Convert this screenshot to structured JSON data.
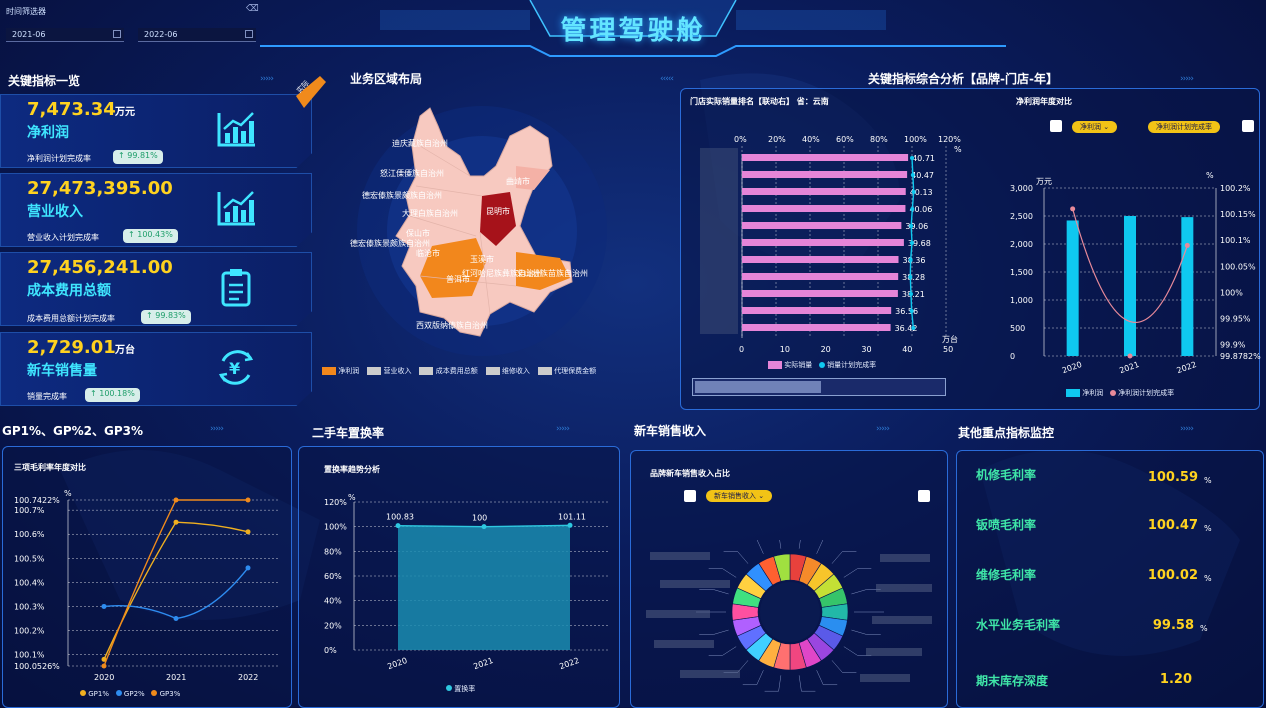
{
  "header": {
    "title": "管理驾驶舱"
  },
  "filter": {
    "label": "时间筛选器",
    "start": "2021-06",
    "end": "2022-06"
  },
  "kpi": {
    "section_title": "关键指标一览",
    "corner_badge": "实际",
    "items": [
      {
        "value": "7,473.34",
        "unit": "万元",
        "name": "净利润",
        "rate_label": "净利润计划完成率",
        "rate": "↑ 99.81%",
        "icon": "trend-chart-icon"
      },
      {
        "value": "27,473,395.00",
        "unit": "",
        "name": "营业收入",
        "rate_label": "营业收入计划完成率",
        "rate": "↑ 100.43%",
        "icon": "trend-chart-icon"
      },
      {
        "value": "27,456,241.00",
        "unit": "",
        "name": "成本费用总额",
        "rate_label": "成本费用总额计划完成率",
        "rate": "↑ 99.83%",
        "icon": "clipboard-icon"
      },
      {
        "value": "2,729.01",
        "unit": "万台",
        "name": "新车销售量",
        "rate_label": "销量完成率",
        "rate": "↑ 100.18%",
        "icon": "yen-cycle-icon"
      }
    ]
  },
  "map": {
    "title": "业务区域布局",
    "labels": [
      "迪庆藏族自治州",
      "怒江傈僳族自治州",
      "大理白族自治州",
      "德宏傣族景颇族自治州",
      "保山市",
      "临沧市",
      "昆明市",
      "曲靖市",
      "玉溪市",
      "普洱市",
      "红河哈尼族彝族自治州",
      "文山壮族苗族自治州",
      "西双版纳傣族自治州"
    ],
    "legend": [
      "净利润",
      "营业收入",
      "成本费用总额",
      "维修收入",
      "代理保费金额"
    ]
  },
  "analysis": {
    "title": "关键指标综合分析【品牌-门店-年】",
    "left_sub": "门店实际销量排名【联动右】 省：云南",
    "right_sub": "净利润年度对比"
  },
  "store_chart": {
    "type": "bar",
    "top_ticks": [
      "0%",
      "20%",
      "40%",
      "60%",
      "80%",
      "100%",
      "120%"
    ],
    "top_unit": "%",
    "bottom_ticks": [
      "0",
      "10",
      "20",
      "30",
      "40",
      "50"
    ],
    "bottom_unit": "万台",
    "values": [
      40.71,
      40.47,
      40.13,
      40.06,
      39.06,
      39.68,
      38.36,
      38.28,
      38.21,
      36.56,
      36.42
    ],
    "labels": [
      "40.71",
      "40.47",
      "40.13",
      "40.06",
      "39.06",
      "39.68",
      "38.36",
      "38.28",
      "38.21",
      "36.56",
      "36.42"
    ],
    "rate": [
      100,
      100.5,
      101,
      100.2,
      99.5,
      100,
      99.2,
      99,
      99.4,
      99.8,
      100.8
    ],
    "legend": [
      "实际销量",
      "销量计划完成率"
    ]
  },
  "profit_chart": {
    "type": "bar",
    "chip1": "净利润",
    "chip2": "净利润计划完成率",
    "left_unit": "万元",
    "right_unit": "%",
    "left_ticks": [
      "0",
      "500",
      "1,000",
      "1,500",
      "2,000",
      "2,500",
      "3,000"
    ],
    "right_ticks": [
      "99.8782%",
      "99.9%",
      "99.95%",
      "100%",
      "100.05%",
      "100.1%",
      "100.15%",
      "100.2%"
    ],
    "categories": [
      "2020",
      "2021",
      "2022"
    ],
    "values": [
      2420,
      2500,
      2480
    ],
    "rate": [
      100.16,
      99.8782,
      100.09
    ],
    "legend": [
      "净利润",
      "净利润计划完成率"
    ]
  },
  "gp_chart": {
    "type": "line",
    "section_title": "GP1%、GP%2、GP3%",
    "sub": "三项毛利率年度对比",
    "y_unit": "%",
    "y_ticks": [
      "100.0526%",
      "100.1%",
      "100.2%",
      "100.3%",
      "100.4%",
      "100.5%",
      "100.6%",
      "100.7%",
      "100.7422%"
    ],
    "categories": [
      "2020",
      "2021",
      "2022"
    ],
    "series": [
      {
        "name": "GP1%",
        "values": [
          100.08,
          100.65,
          100.61
        ],
        "color": "#f0b020"
      },
      {
        "name": "GP2%",
        "values": [
          100.3,
          100.25,
          100.46
        ],
        "color": "#2e8cf0"
      },
      {
        "name": "GP3%",
        "values": [
          100.0526,
          100.7422,
          100.7422
        ],
        "color": "#f08a1c"
      }
    ]
  },
  "replace_chart": {
    "type": "area",
    "section_title": "二手车置换率",
    "sub": "置换率趋势分析",
    "y_unit": "%",
    "y_ticks": [
      "0%",
      "20%",
      "40%",
      "60%",
      "80%",
      "100%",
      "120%"
    ],
    "categories": [
      "2020",
      "2021",
      "2022"
    ],
    "values": [
      100.83,
      100,
      101.11
    ],
    "labels": [
      "100.83",
      "100",
      "101.11"
    ],
    "legend": "置换率"
  },
  "newcar": {
    "section_title": "新车销售收入",
    "sub": "品牌新车销售收入占比",
    "chip": "新车销售收入",
    "type": "pie"
  },
  "monitor": {
    "section_title": "其他重点指标监控",
    "items": [
      {
        "label": "机修毛利率",
        "value": "100.59",
        "unit": "%"
      },
      {
        "label": "钣喷毛利率",
        "value": "100.47",
        "unit": "%"
      },
      {
        "label": "维修毛利率",
        "value": "100.02",
        "unit": "%"
      },
      {
        "label": "水平业务毛利率",
        "value": "99.58",
        "unit": "%"
      },
      {
        "label": "期末库存深度",
        "value": "1.20",
        "unit": ""
      }
    ]
  },
  "colors": {
    "accent": "#3fe6ff",
    "value": "#ffd21f",
    "bar": "#0fc8f0",
    "pink": "#e585d8",
    "orange": "#f08a1c"
  }
}
